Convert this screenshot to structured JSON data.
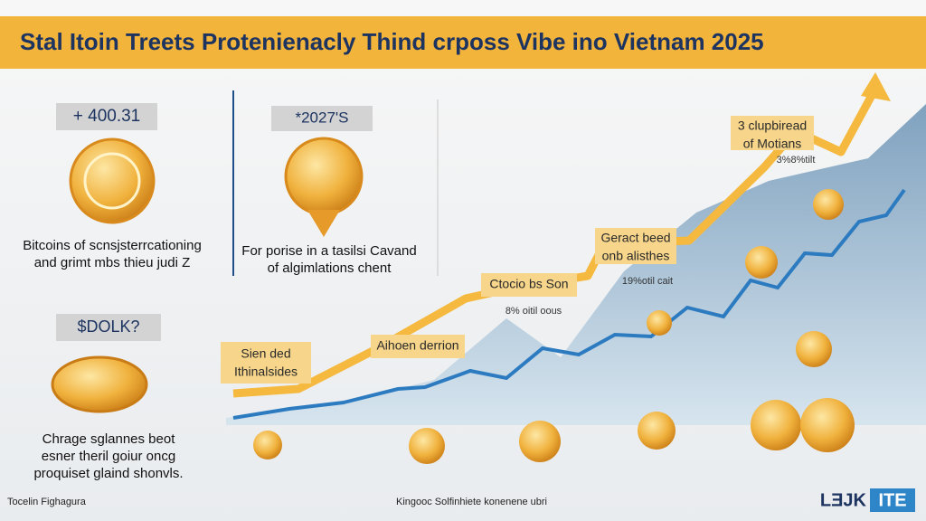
{
  "header": {
    "title": "Stal Itoin Treets Protenienacly Thind crposs Vibe ino Vietnam 2025"
  },
  "stats": [
    {
      "value": "+ 400.31",
      "caption": [
        "Bitcoins of scnsjsterrcationing",
        "and grimt mbs thieu judi Z"
      ]
    },
    {
      "value": "*2027'S",
      "caption": [
        "For porise in a tasilsi Cavand",
        "of algimlations chent"
      ]
    },
    {
      "value": "$DOLK?",
      "caption": [
        "Chrage sglannes beot",
        "esner theril goiur oncg",
        "proquiset glaind shonvls."
      ]
    }
  ],
  "annotations": [
    {
      "lines": [
        "Sien ded",
        "Ithinalsides"
      ]
    },
    {
      "lines": [
        "Aihoen derrion"
      ]
    },
    {
      "lines": [
        "Ctocio bs Son"
      ]
    },
    {
      "lines": [
        "8% oitil oous"
      ]
    },
    {
      "lines": [
        "Geract beed",
        "onb alisthes"
      ]
    },
    {
      "lines": [
        "19%otil cait"
      ]
    },
    {
      "lines": [
        "3 clupbiread",
        "of Motians"
      ]
    },
    {
      "lines": [
        "3%8%tilt"
      ]
    }
  ],
  "footer": {
    "left": "Tocelin Fighagura",
    "center": "Kingooc Solfinhiete konenene ubri",
    "logo": [
      "LƎJK",
      "ITE"
    ]
  }
}
